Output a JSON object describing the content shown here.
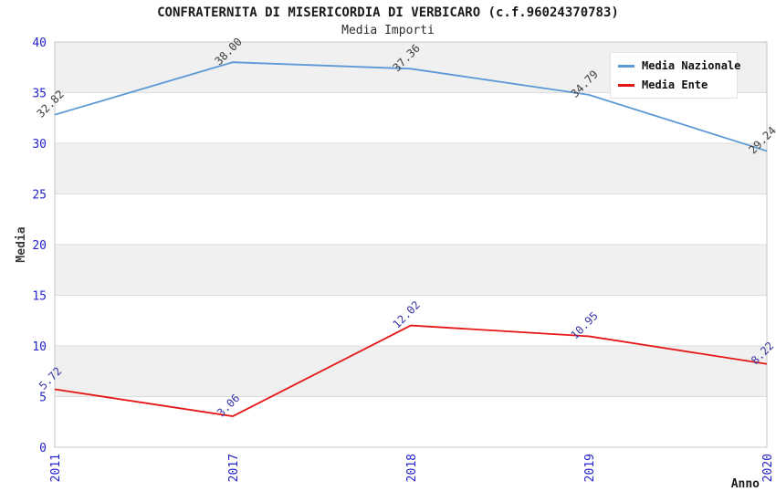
{
  "chart_data": {
    "type": "line",
    "title": "CONFRATERNITA DI MISERICORDIA DI VERBICARO (c.f.96024370783)",
    "subtitle": "Media Importi",
    "categories": [
      "2011",
      "2017",
      "2018",
      "2019",
      "2020"
    ],
    "series": [
      {
        "name": "Media Nazionale",
        "color": "#5d99d6",
        "label_color": "#3c3c3c",
        "values": [
          32.82,
          38.0,
          37.36,
          34.79,
          29.24
        ]
      },
      {
        "name": "Media Ente",
        "color": "#e51616",
        "label_color": "#3535a5",
        "values": [
          5.72,
          3.06,
          12.02,
          10.95,
          8.22
        ]
      }
    ],
    "xlabel": "Anno",
    "ylabel": "Media",
    "ylim": [
      0,
      40
    ],
    "ytick_step": 5,
    "yticks": [
      0,
      5,
      10,
      15,
      20,
      25,
      30,
      35,
      40
    ],
    "value_label_decimals": 2,
    "tick_label_color": "#2323cc",
    "band_colors": [
      "#f0f0f0",
      "#ffffff"
    ],
    "gridline_color": "#dcdcdc",
    "plot_border_color": "#c6c6c6",
    "grid": "horizontal-bands",
    "legend_position": "top-right"
  }
}
